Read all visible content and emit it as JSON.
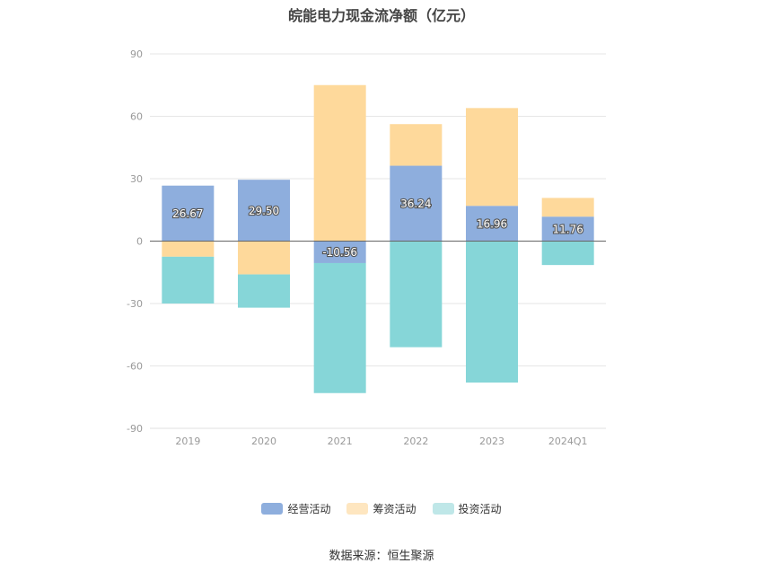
{
  "title": "皖能电力现金流净额（亿元）",
  "source": "数据来源：恒生聚源",
  "chart_data": {
    "type": "bar",
    "stacked": true,
    "categories": [
      "2019",
      "2020",
      "2021",
      "2022",
      "2023",
      "2024Q1"
    ],
    "ylim": [
      -90,
      90
    ],
    "yticks": [
      90,
      60,
      30,
      0,
      -30,
      -60,
      -90
    ],
    "grid": true,
    "legend_position": "bottom",
    "series": [
      {
        "name": "经营活动",
        "color": "#8eaedd",
        "values": [
          26.67,
          29.5,
          -10.56,
          36.24,
          16.96,
          11.76
        ],
        "labels": [
          "26.67",
          "29.50",
          "-10.56",
          "36.24",
          "16.96",
          "11.76"
        ]
      },
      {
        "name": "筹资活动",
        "color": "#fed99b",
        "values": [
          -7.5,
          -16.0,
          75.0,
          20.0,
          47.0,
          9.0
        ]
      },
      {
        "name": "投资活动",
        "color": "#86d6d8",
        "values": [
          -22.5,
          -16.0,
          -62.5,
          -51.0,
          -68.0,
          -11.5
        ]
      }
    ]
  },
  "legend_colors": {
    "经营活动": "#8eaedd",
    "筹资活动": "#fee6c0",
    "投资活动": "#bfe7e8"
  }
}
